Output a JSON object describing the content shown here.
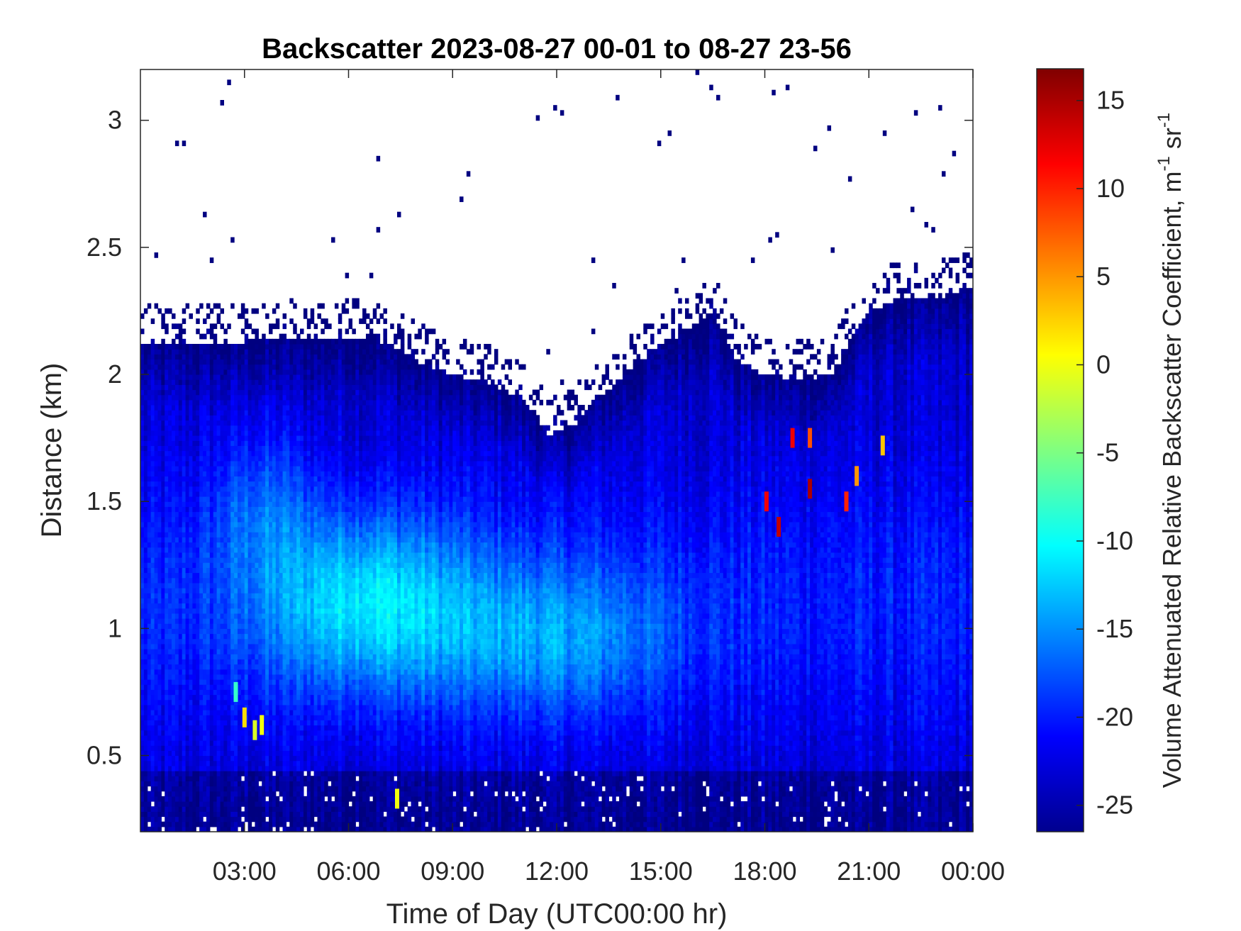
{
  "chart_data": {
    "type": "heatmap",
    "title": "Backscatter 2023-08-27 00-01 to 08-27 23-56",
    "xlabel": "Time of Day (UTC00:00 hr)",
    "ylabel": "Distance (km)",
    "xlim": [
      0,
      24
    ],
    "ylim": [
      0.2,
      3.2
    ],
    "x_ticks": [
      {
        "value": 3,
        "label": "03:00"
      },
      {
        "value": 6,
        "label": "06:00"
      },
      {
        "value": 9,
        "label": "09:00"
      },
      {
        "value": 12,
        "label": "12:00"
      },
      {
        "value": 15,
        "label": "15:00"
      },
      {
        "value": 18,
        "label": "18:00"
      },
      {
        "value": 21,
        "label": "21:00"
      },
      {
        "value": 24,
        "label": "00:00"
      }
    ],
    "y_ticks": [
      {
        "value": 0.5,
        "label": "0.5"
      },
      {
        "value": 1,
        "label": "1"
      },
      {
        "value": 1.5,
        "label": "1.5"
      },
      {
        "value": 2,
        "label": "2"
      },
      {
        "value": 2.5,
        "label": "2.5"
      },
      {
        "value": 3,
        "label": "3"
      }
    ],
    "colorbar": {
      "label": "Volume Attenuated Relative Backscatter Coefficient, m",
      "label_sup1": "-1",
      "label_mid": " sr",
      "label_sup2": "-1",
      "range": [
        -26.5,
        16.8
      ],
      "colormap": "jet",
      "ticks": [
        {
          "value": 15,
          "label": "15"
        },
        {
          "value": 10,
          "label": "10"
        },
        {
          "value": 5,
          "label": "5"
        },
        {
          "value": 0,
          "label": "0"
        },
        {
          "value": -5,
          "label": "-5"
        },
        {
          "value": -10,
          "label": "-10"
        },
        {
          "value": -15,
          "label": "-15"
        },
        {
          "value": -20,
          "label": "-20"
        },
        {
          "value": -25,
          "label": "-25"
        }
      ]
    },
    "signal_top_km": [
      [
        0.0,
        2.13
      ],
      [
        1.5,
        2.12
      ],
      [
        3.0,
        2.13
      ],
      [
        4.5,
        2.13
      ],
      [
        6.0,
        2.15
      ],
      [
        7.2,
        2.12
      ],
      [
        8.0,
        2.05
      ],
      [
        9.0,
        2.0
      ],
      [
        10.0,
        1.97
      ],
      [
        11.0,
        1.9
      ],
      [
        11.8,
        1.76
      ],
      [
        12.5,
        1.8
      ],
      [
        13.2,
        1.9
      ],
      [
        14.0,
        2.0
      ],
      [
        14.8,
        2.1
      ],
      [
        15.5,
        2.15
      ],
      [
        16.5,
        2.25
      ],
      [
        17.2,
        2.05
      ],
      [
        18.0,
        2.0
      ],
      [
        19.0,
        1.98
      ],
      [
        20.0,
        2.0
      ],
      [
        20.5,
        2.15
      ],
      [
        21.0,
        2.25
      ],
      [
        22.0,
        2.3
      ],
      [
        23.0,
        2.3
      ],
      [
        24.0,
        2.35
      ]
    ],
    "strong_returns": [
      {
        "t": 18.05,
        "z": 1.5,
        "value": 12
      },
      {
        "t": 18.4,
        "z": 1.4,
        "value": 14
      },
      {
        "t": 18.8,
        "z": 1.75,
        "value": 12
      },
      {
        "t": 19.3,
        "z": 1.55,
        "value": 15
      },
      {
        "t": 19.3,
        "z": 1.75,
        "value": 8
      },
      {
        "t": 20.35,
        "z": 1.5,
        "value": 10
      },
      {
        "t": 20.65,
        "z": 1.6,
        "value": 5
      },
      {
        "t": 21.4,
        "z": 1.72,
        "value": 3
      },
      {
        "t": 3.0,
        "z": 0.65,
        "value": 2
      },
      {
        "t": 3.5,
        "z": 0.62,
        "value": 0
      },
      {
        "t": 3.3,
        "z": 0.6,
        "value": -1
      },
      {
        "t": 7.4,
        "z": 0.33,
        "value": 0
      },
      {
        "t": 2.75,
        "z": 0.75,
        "value": -8
      }
    ]
  }
}
